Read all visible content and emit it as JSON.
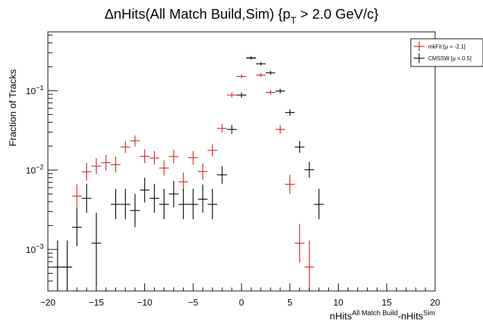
{
  "chart_data": {
    "type": "scatter",
    "title_main": "ΔnHits(All Match Build,Sim) {p",
    "title_sub": "T",
    "title_tail": " > 2.0 GeV/c}",
    "ylabel": "Fraction of Tracks",
    "xlabel_parts": [
      {
        "text": "nHits",
        "sup": false
      },
      {
        "text": "All Match Build",
        "sup": true
      },
      {
        "text": "-nHits",
        "sup": false
      },
      {
        "text": "Sim",
        "sup": true
      }
    ],
    "xlim": [
      -20,
      20
    ],
    "ylim": [
      0.0003,
      0.55
    ],
    "yscale": "log",
    "xticks": [
      -20,
      -15,
      -10,
      -5,
      0,
      5,
      10,
      15,
      20
    ],
    "xtick_labels": [
      "−20",
      "−15",
      "−10",
      "−5",
      "0",
      "5",
      "10",
      "15",
      "20"
    ],
    "yticks": [
      0.001,
      0.01,
      0.1
    ],
    "ytick_labels": [
      {
        "base": "10",
        "exp": "−3"
      },
      {
        "base": "10",
        "exp": "−2"
      },
      {
        "base": "10",
        "exp": "−1"
      }
    ],
    "grid": false,
    "legend_position": "top-right",
    "series": [
      {
        "name": "mkFit",
        "legend_label": "mkFit  [μ = -2.1]",
        "color": "#d42020",
        "points": [
          {
            "x": -18,
            "y": 0.0006,
            "lo": 0.00032,
            "hi": 0.0011
          },
          {
            "x": -17,
            "y": 0.0047,
            "lo": 0.0032,
            "hi": 0.0066
          },
          {
            "x": -16,
            "y": 0.0095,
            "lo": 0.0074,
            "hi": 0.0123
          },
          {
            "x": -15,
            "y": 0.0112,
            "lo": 0.0089,
            "hi": 0.0141
          },
          {
            "x": -14,
            "y": 0.0124,
            "lo": 0.0098,
            "hi": 0.0155
          },
          {
            "x": -13,
            "y": 0.0117,
            "lo": 0.0093,
            "hi": 0.0147
          },
          {
            "x": -12,
            "y": 0.0195,
            "lo": 0.0164,
            "hi": 0.0232
          },
          {
            "x": -11,
            "y": 0.0233,
            "lo": 0.0198,
            "hi": 0.0272
          },
          {
            "x": -10,
            "y": 0.0149,
            "lo": 0.0122,
            "hi": 0.0182
          },
          {
            "x": -9,
            "y": 0.0142,
            "lo": 0.0117,
            "hi": 0.0173
          },
          {
            "x": -8,
            "y": 0.0106,
            "lo": 0.0085,
            "hi": 0.0133
          },
          {
            "x": -7,
            "y": 0.0148,
            "lo": 0.0122,
            "hi": 0.018
          },
          {
            "x": -6,
            "y": 0.0071,
            "lo": 0.0054,
            "hi": 0.0093
          },
          {
            "x": -5,
            "y": 0.0143,
            "lo": 0.0117,
            "hi": 0.0174
          },
          {
            "x": -4,
            "y": 0.0096,
            "lo": 0.0076,
            "hi": 0.0121
          },
          {
            "x": -3,
            "y": 0.0177,
            "lo": 0.0148,
            "hi": 0.0212
          },
          {
            "x": -2,
            "y": 0.0335,
            "lo": 0.0295,
            "hi": 0.0381
          },
          {
            "x": -1,
            "y": 0.088,
            "lo": 0.0815,
            "hi": 0.095
          },
          {
            "x": 0,
            "y": 0.151,
            "lo": 0.143,
            "hi": 0.16
          },
          {
            "x": 1,
            "y": 0.26,
            "lo": 0.25,
            "hi": 0.271
          },
          {
            "x": 2,
            "y": 0.157,
            "lo": 0.149,
            "hi": 0.166
          },
          {
            "x": 3,
            "y": 0.095,
            "lo": 0.0885,
            "hi": 0.102
          },
          {
            "x": 4,
            "y": 0.0325,
            "lo": 0.0286,
            "hi": 0.037
          },
          {
            "x": 5,
            "y": 0.0066,
            "lo": 0.005,
            "hi": 0.0087
          },
          {
            "x": 6,
            "y": 0.0012,
            "lo": 0.00068,
            "hi": 0.0021
          },
          {
            "x": 7,
            "y": 0.0006,
            "lo": 0.00025,
            "hi": 0.0013
          }
        ]
      },
      {
        "name": "CMSSW",
        "legend_label": "CMSSW  [μ = 0.5]",
        "color": "#000000",
        "points": [
          {
            "x": -19,
            "y": 0.0006,
            "lo": 0.00025,
            "hi": 0.0013
          },
          {
            "x": -18,
            "y": 0.0006,
            "lo": 0.00025,
            "hi": 0.0013
          },
          {
            "x": -17,
            "y": 0.0019,
            "lo": 0.0011,
            "hi": 0.0033
          },
          {
            "x": -16,
            "y": 0.0044,
            "lo": 0.0029,
            "hi": 0.0067
          },
          {
            "x": -15,
            "y": 0.0012,
            "lo": 0.00035,
            "hi": 0.0029
          },
          {
            "x": -13,
            "y": 0.0037,
            "lo": 0.0024,
            "hi": 0.0058
          },
          {
            "x": -12,
            "y": 0.0037,
            "lo": 0.0024,
            "hi": 0.0058
          },
          {
            "x": -11,
            "y": 0.0031,
            "lo": 0.0019,
            "hi": 0.005
          },
          {
            "x": -10,
            "y": 0.0056,
            "lo": 0.0039,
            "hi": 0.008
          },
          {
            "x": -9,
            "y": 0.0044,
            "lo": 0.0029,
            "hi": 0.0067
          },
          {
            "x": -8,
            "y": 0.0037,
            "lo": 0.0024,
            "hi": 0.0058
          },
          {
            "x": -7,
            "y": 0.005,
            "lo": 0.0034,
            "hi": 0.0073
          },
          {
            "x": -6,
            "y": 0.0037,
            "lo": 0.0024,
            "hi": 0.0058
          },
          {
            "x": -5,
            "y": 0.0037,
            "lo": 0.0024,
            "hi": 0.0058
          },
          {
            "x": -4,
            "y": 0.0043,
            "lo": 0.0029,
            "hi": 0.0066
          },
          {
            "x": -3,
            "y": 0.0037,
            "lo": 0.0024,
            "hi": 0.0058
          },
          {
            "x": -2,
            "y": 0.0087,
            "lo": 0.0067,
            "hi": 0.0112
          },
          {
            "x": -1,
            "y": 0.0325,
            "lo": 0.0286,
            "hi": 0.037
          },
          {
            "x": 0,
            "y": 0.088,
            "lo": 0.0815,
            "hi": 0.095
          },
          {
            "x": 1,
            "y": 0.257,
            "lo": 0.247,
            "hi": 0.268
          },
          {
            "x": 2,
            "y": 0.218,
            "lo": 0.208,
            "hi": 0.228
          },
          {
            "x": 3,
            "y": 0.168,
            "lo": 0.159,
            "hi": 0.177
          },
          {
            "x": 4,
            "y": 0.099,
            "lo": 0.0925,
            "hi": 0.106
          },
          {
            "x": 5,
            "y": 0.053,
            "lo": 0.0485,
            "hi": 0.058
          },
          {
            "x": 6,
            "y": 0.0195,
            "lo": 0.0165,
            "hi": 0.0232
          },
          {
            "x": 7,
            "y": 0.0101,
            "lo": 0.008,
            "hi": 0.0127
          },
          {
            "x": 8,
            "y": 0.0037,
            "lo": 0.0024,
            "hi": 0.0058
          }
        ]
      }
    ]
  }
}
